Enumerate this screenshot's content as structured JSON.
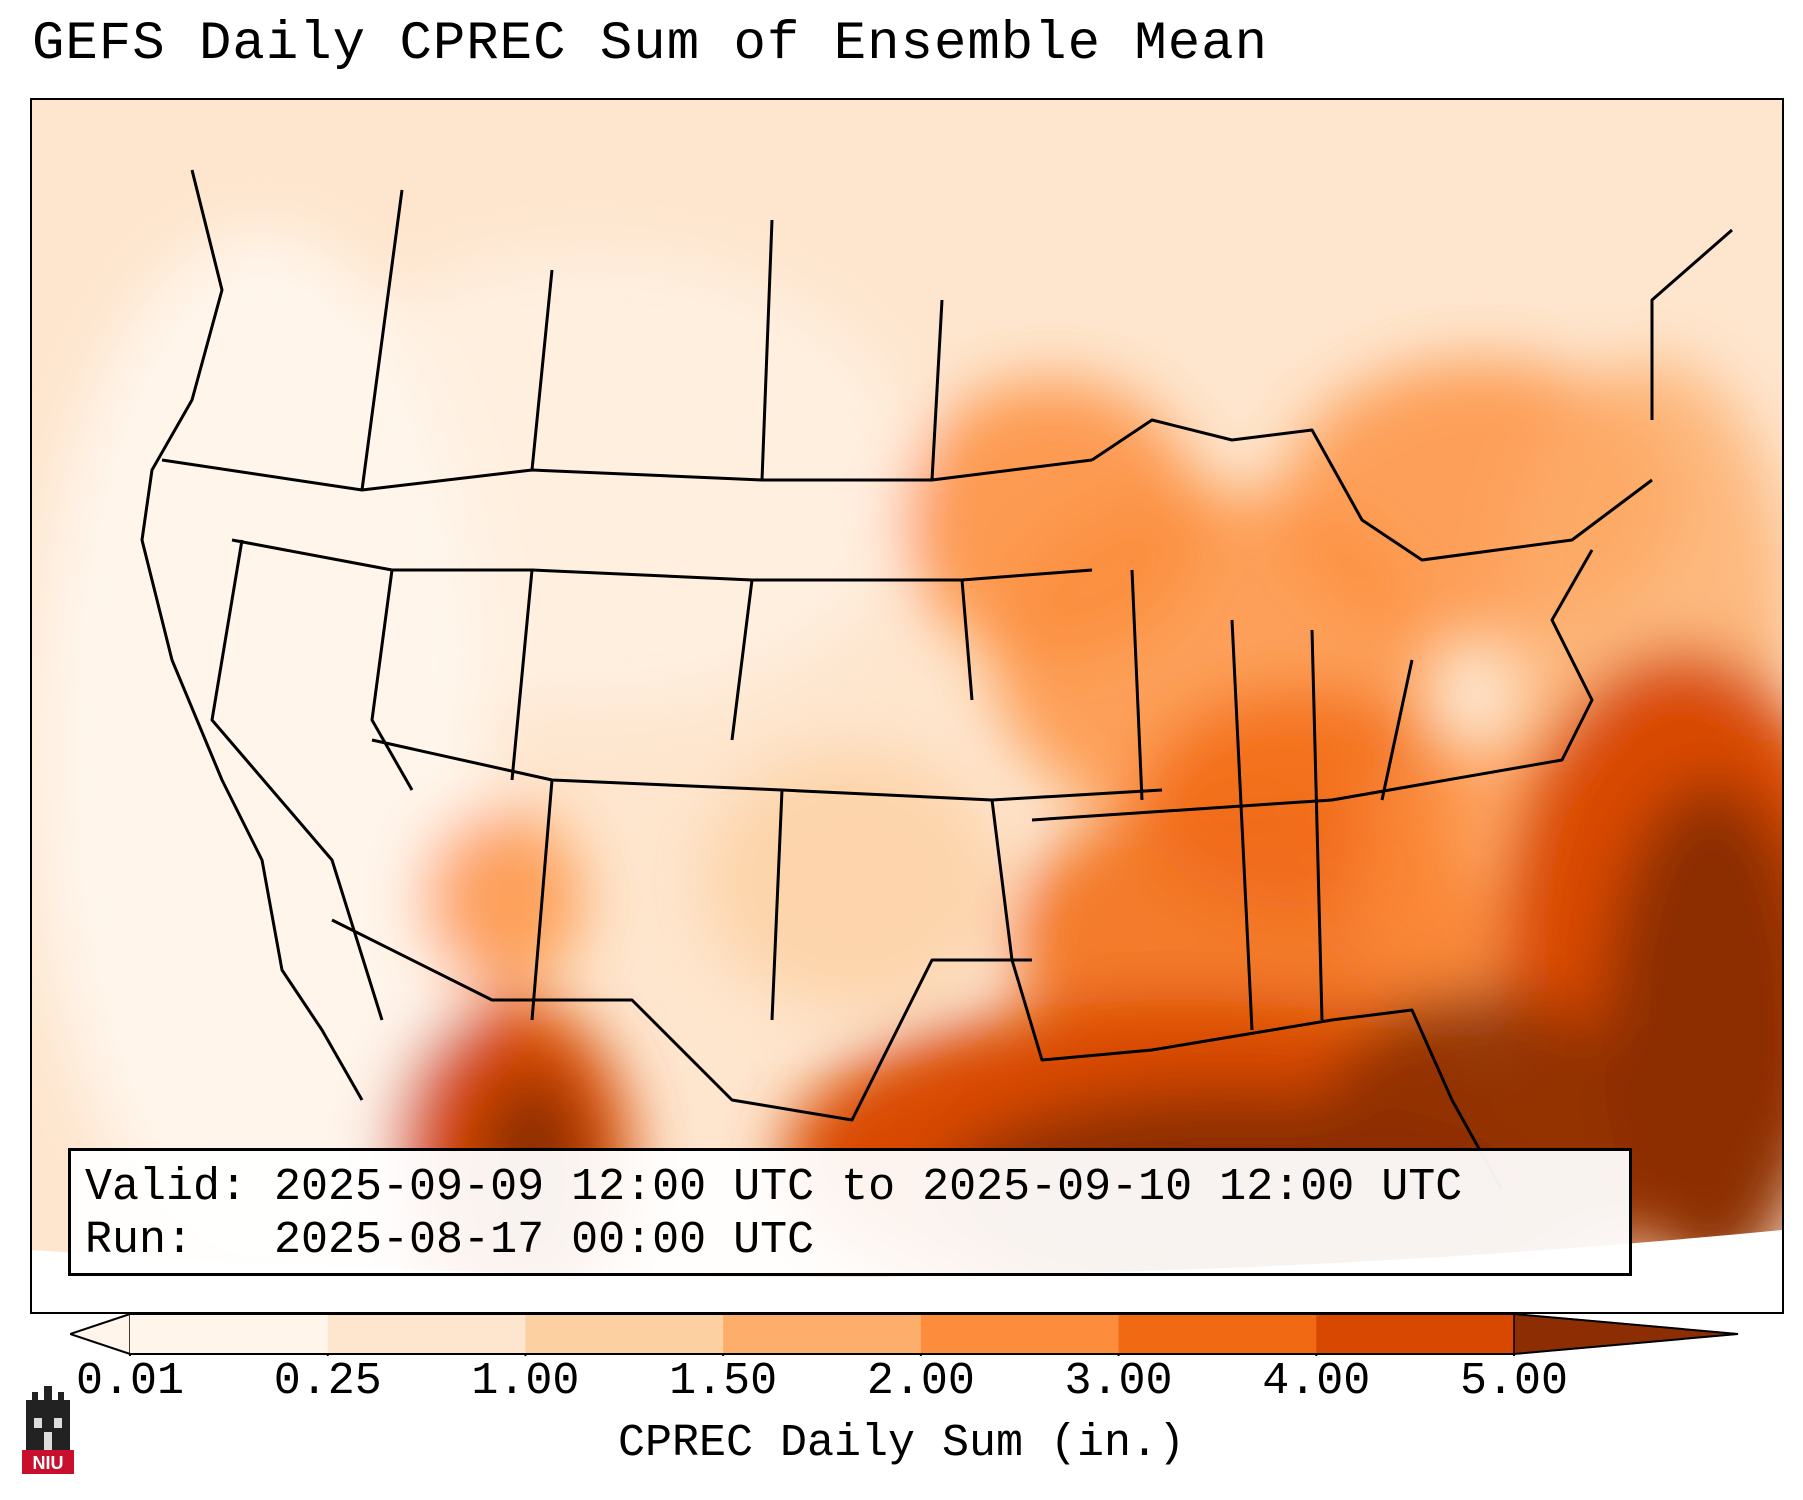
{
  "title": "GEFS Daily CPREC Sum of Ensemble Mean",
  "valid_line": "Valid: 2025-09-09 12:00 UTC to 2025-09-10 12:00 UTC",
  "run_line": "Run:   2025-08-17 00:00 UTC",
  "colorbar": {
    "label": "CPREC Daily Sum (in.)",
    "ticks": [
      "0.01",
      "0.25",
      "1.00",
      "1.50",
      "2.00",
      "3.00",
      "4.00",
      "5.00"
    ],
    "colors": [
      "#fff5eb",
      "#fee6ce",
      "#fdd0a2",
      "#fdae6b",
      "#fd8d3c",
      "#f16913",
      "#d94801",
      "#8c2d04"
    ],
    "extend": "both"
  },
  "logo": {
    "text": "NIU",
    "color": "#c8102e"
  }
}
